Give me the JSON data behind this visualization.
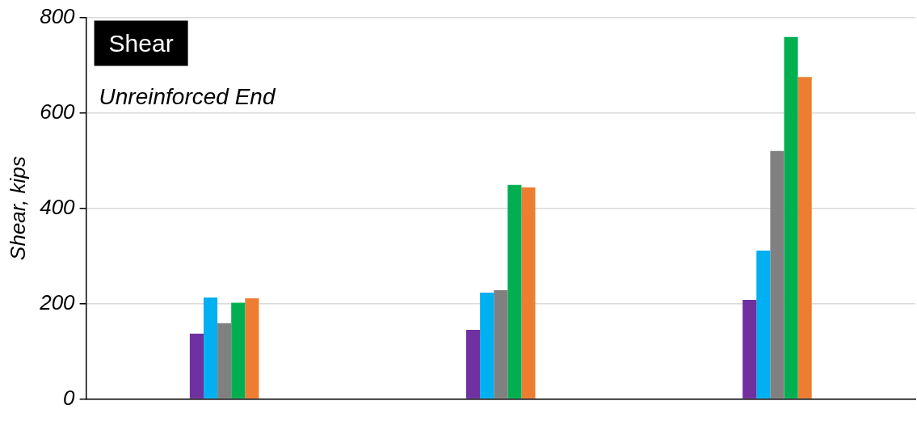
{
  "chart_data": {
    "type": "bar",
    "title": "Shear",
    "ylabel": "Shear, kips",
    "annotations": [
      "Unreinforced End"
    ],
    "categories": [
      null,
      null,
      null
    ],
    "series": [
      {
        "color": "#7030a0",
        "values": [
          137,
          145,
          208
        ]
      },
      {
        "color": "#00b0f0",
        "values": [
          213,
          223,
          311
        ]
      },
      {
        "color": "#808080",
        "values": [
          159,
          228,
          520
        ]
      },
      {
        "color": "#00b050",
        "values": [
          202,
          449,
          759
        ]
      },
      {
        "color": "#ed7d31",
        "values": [
          211,
          444,
          675
        ]
      }
    ],
    "ylim": [
      0,
      800
    ],
    "yticks": [
      0,
      200,
      400,
      600,
      800
    ],
    "grid": "y",
    "legend": false
  }
}
